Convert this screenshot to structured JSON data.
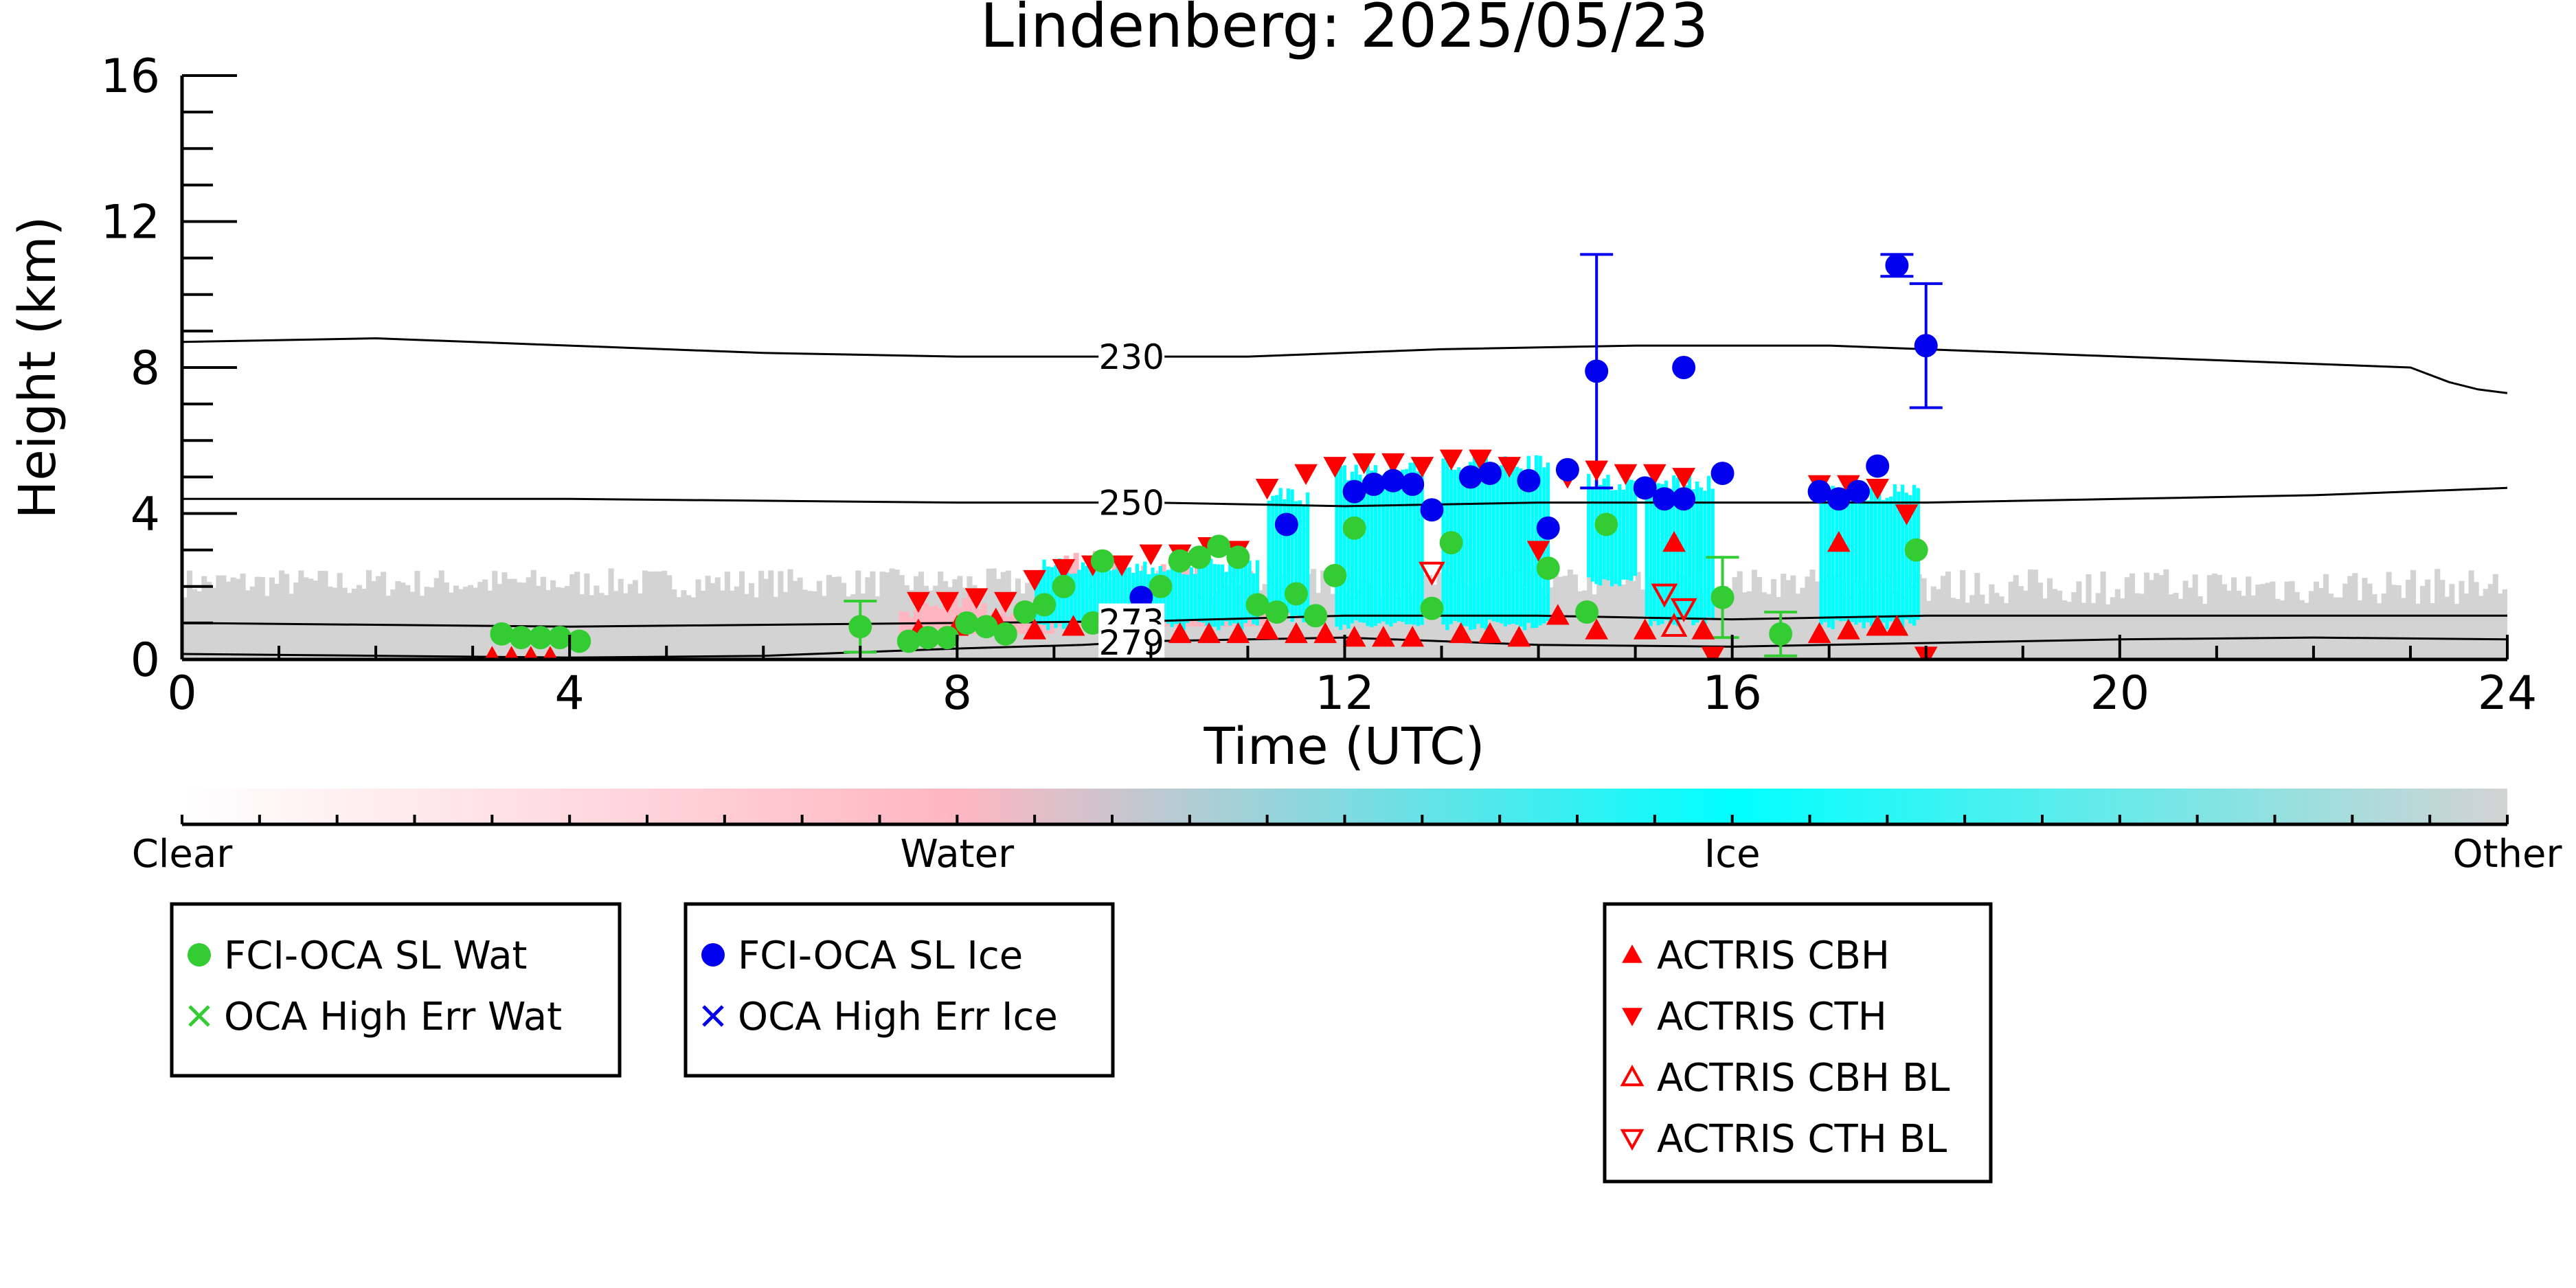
{
  "chart_data": {
    "type": "scatter",
    "title": "Lindenberg: 2025/05/23",
    "xlabel": "Time (UTC)",
    "ylabel": "Height (km)",
    "xlim": [
      0,
      24
    ],
    "ylim": [
      0,
      16
    ],
    "xticks": [
      0,
      4,
      8,
      12,
      16,
      20,
      24
    ],
    "yticks": [
      0,
      4,
      8,
      12,
      16
    ],
    "grid": false,
    "colorbar": {
      "labels": [
        "Clear",
        "Water",
        "Ice",
        "Other"
      ],
      "colors": [
        "#ffffff",
        "#ffb6c1",
        "#00ffff",
        "#d3d3d3"
      ]
    },
    "isotherms": [
      {
        "label": "230",
        "points": [
          [
            0,
            8.7
          ],
          [
            2,
            8.8
          ],
          [
            4,
            8.6
          ],
          [
            6,
            8.4
          ],
          [
            8,
            8.3
          ],
          [
            9.5,
            8.3
          ],
          [
            11,
            8.3
          ],
          [
            13,
            8.5
          ],
          [
            15,
            8.6
          ],
          [
            17,
            8.6
          ],
          [
            19,
            8.4
          ],
          [
            21,
            8.2
          ],
          [
            23,
            8.0
          ],
          [
            23.4,
            7.6
          ],
          [
            23.7,
            7.4
          ],
          [
            24,
            7.3
          ]
        ]
      },
      {
        "label": "250",
        "points": [
          [
            0,
            4.4
          ],
          [
            4,
            4.4
          ],
          [
            8,
            4.3
          ],
          [
            10,
            4.3
          ],
          [
            12,
            4.2
          ],
          [
            14,
            4.3
          ],
          [
            16,
            4.3
          ],
          [
            18,
            4.3
          ],
          [
            20,
            4.4
          ],
          [
            22,
            4.5
          ],
          [
            24,
            4.7
          ]
        ]
      },
      {
        "label": "273",
        "points": [
          [
            0,
            1.0
          ],
          [
            4,
            0.9
          ],
          [
            8,
            1.0
          ],
          [
            10,
            1.05
          ],
          [
            12,
            1.2
          ],
          [
            14,
            1.2
          ],
          [
            16,
            1.1
          ],
          [
            18,
            1.2
          ],
          [
            20,
            1.2
          ],
          [
            22,
            1.2
          ],
          [
            24,
            1.2
          ]
        ]
      },
      {
        "label": "279",
        "points": [
          [
            0,
            0.15
          ],
          [
            4,
            0.05
          ],
          [
            6,
            0.1
          ],
          [
            8,
            0.3
          ],
          [
            9.3,
            0.4
          ],
          [
            10,
            0.5
          ],
          [
            12,
            0.6
          ],
          [
            14,
            0.4
          ],
          [
            16,
            0.35
          ],
          [
            18,
            0.45
          ],
          [
            20,
            0.55
          ],
          [
            22,
            0.6
          ],
          [
            24,
            0.55
          ]
        ]
      }
    ],
    "series": [
      {
        "name": "FCI-OCA SL Wat",
        "marker": "circle",
        "color": "#33cc33",
        "points": [
          [
            3.3,
            0.7
          ],
          [
            3.5,
            0.6
          ],
          [
            3.7,
            0.6
          ],
          [
            3.9,
            0.6
          ],
          [
            4.1,
            0.5
          ],
          [
            7,
            0.9
          ],
          [
            7.5,
            0.5
          ],
          [
            7.7,
            0.6
          ],
          [
            7.9,
            0.6
          ],
          [
            8.1,
            1.0
          ],
          [
            8.3,
            0.9
          ],
          [
            8.5,
            0.7
          ],
          [
            8.7,
            1.3
          ],
          [
            8.9,
            1.5
          ],
          [
            9.1,
            2.0
          ],
          [
            9.4,
            1.0
          ],
          [
            9.5,
            2.7
          ],
          [
            9.9,
            1.4
          ],
          [
            10.1,
            2.0
          ],
          [
            10.3,
            2.7
          ],
          [
            10.5,
            2.8
          ],
          [
            10.7,
            3.1
          ],
          [
            10.9,
            2.8
          ],
          [
            11.1,
            1.5
          ],
          [
            11.3,
            1.3
          ],
          [
            11.5,
            1.8
          ],
          [
            11.7,
            1.2
          ],
          [
            11.9,
            2.3
          ],
          [
            12.1,
            3.6
          ],
          [
            12.9,
            1.4
          ],
          [
            13.1,
            3.2
          ],
          [
            14.1,
            2.5
          ],
          [
            14.5,
            1.3
          ],
          [
            14.7,
            3.7
          ],
          [
            15.9,
            1.7
          ],
          [
            16.5,
            0.7
          ],
          [
            17.9,
            3.0
          ]
        ],
        "errors": [
          [
            7,
            0.9,
            0.7
          ],
          [
            15.9,
            1.7,
            1.1
          ],
          [
            16.5,
            0.7,
            0.6
          ]
        ]
      },
      {
        "name": "OCA High Err Wat",
        "marker": "x",
        "color": "#33cc33",
        "points": []
      },
      {
        "name": "FCI-OCA SL Ice",
        "marker": "circle",
        "color": "#0000ee",
        "points": [
          [
            9.9,
            1.7
          ],
          [
            11.4,
            3.7
          ],
          [
            12.1,
            4.6
          ],
          [
            12.3,
            4.8
          ],
          [
            12.5,
            4.9
          ],
          [
            12.7,
            4.8
          ],
          [
            12.9,
            4.1
          ],
          [
            13.3,
            5.0
          ],
          [
            13.5,
            5.1
          ],
          [
            13.9,
            4.9
          ],
          [
            14.1,
            3.6
          ],
          [
            14.3,
            5.2
          ],
          [
            14.6,
            7.9
          ],
          [
            15.1,
            4.7
          ],
          [
            15.3,
            4.4
          ],
          [
            15.5,
            4.4
          ],
          [
            15.5,
            8.0
          ],
          [
            15.9,
            5.1
          ],
          [
            16.9,
            4.6
          ],
          [
            17.1,
            4.4
          ],
          [
            17.3,
            4.6
          ],
          [
            17.5,
            5.3
          ],
          [
            17.7,
            10.8
          ],
          [
            18.0,
            8.6
          ]
        ],
        "errors": [
          [
            14.6,
            7.9,
            3.2
          ],
          [
            17.7,
            10.8,
            0.3
          ],
          [
            18.0,
            8.6,
            1.7
          ]
        ]
      },
      {
        "name": "OCA High Err Ice",
        "marker": "x",
        "color": "#0000ee",
        "points": []
      },
      {
        "name": "ACTRIS CBH",
        "marker": "triangle-up",
        "color": "#ff0000",
        "points": [
          [
            3.2,
            0.05
          ],
          [
            3.4,
            0.05
          ],
          [
            3.6,
            0.05
          ],
          [
            3.8,
            0.05
          ],
          [
            7.6,
            0.8
          ],
          [
            8.0,
            0.9
          ],
          [
            8.4,
            1.1
          ],
          [
            8.8,
            0.8
          ],
          [
            9.2,
            0.9
          ],
          [
            9.6,
            1.0
          ],
          [
            10.0,
            0.7
          ],
          [
            10.3,
            0.7
          ],
          [
            10.6,
            0.7
          ],
          [
            10.9,
            0.7
          ],
          [
            11.2,
            0.8
          ],
          [
            11.5,
            0.7
          ],
          [
            11.8,
            0.7
          ],
          [
            12.1,
            0.6
          ],
          [
            12.4,
            0.6
          ],
          [
            12.7,
            0.6
          ],
          [
            13.2,
            0.7
          ],
          [
            13.5,
            0.7
          ],
          [
            13.8,
            0.6
          ],
          [
            14.2,
            1.2
          ],
          [
            14.6,
            0.8
          ],
          [
            15.1,
            0.8
          ],
          [
            15.4,
            3.2
          ],
          [
            15.7,
            0.8
          ],
          [
            16.9,
            0.7
          ],
          [
            17.2,
            0.8
          ],
          [
            17.5,
            0.9
          ],
          [
            17.7,
            0.9
          ],
          [
            17.1,
            3.2
          ]
        ]
      },
      {
        "name": "ACTRIS CTH",
        "marker": "triangle-down",
        "color": "#ff0000",
        "points": [
          [
            7.6,
            1.6
          ],
          [
            7.9,
            1.6
          ],
          [
            8.2,
            1.7
          ],
          [
            8.5,
            1.6
          ],
          [
            8.8,
            2.2
          ],
          [
            9.1,
            2.5
          ],
          [
            9.4,
            2.6
          ],
          [
            9.7,
            2.6
          ],
          [
            10.0,
            2.9
          ],
          [
            10.3,
            2.9
          ],
          [
            10.6,
            3.1
          ],
          [
            10.9,
            3.0
          ],
          [
            11.2,
            4.7
          ],
          [
            11.6,
            5.1
          ],
          [
            11.9,
            5.3
          ],
          [
            12.2,
            5.4
          ],
          [
            12.5,
            5.4
          ],
          [
            12.8,
            5.3
          ],
          [
            13.1,
            5.5
          ],
          [
            13.4,
            5.5
          ],
          [
            13.7,
            5.3
          ],
          [
            14.0,
            3.0
          ],
          [
            14.3,
            5.0
          ],
          [
            14.6,
            5.2
          ],
          [
            14.9,
            5.1
          ],
          [
            15.2,
            5.1
          ],
          [
            15.5,
            5.0
          ],
          [
            15.8,
            0.1
          ],
          [
            16.9,
            4.8
          ],
          [
            17.2,
            4.8
          ],
          [
            17.5,
            4.7
          ],
          [
            17.8,
            4.0
          ],
          [
            18.0,
            0.1
          ]
        ]
      },
      {
        "name": "ACTRIS CBH BL",
        "marker": "triangle-up-open",
        "color": "#ff0000",
        "points": [
          [
            15.4,
            0.9
          ]
        ]
      },
      {
        "name": "ACTRIS CTH BL",
        "marker": "triangle-down-open",
        "color": "#ff0000",
        "points": [
          [
            12.9,
            2.4
          ],
          [
            15.3,
            1.8
          ],
          [
            15.5,
            1.4
          ]
        ]
      }
    ]
  }
}
